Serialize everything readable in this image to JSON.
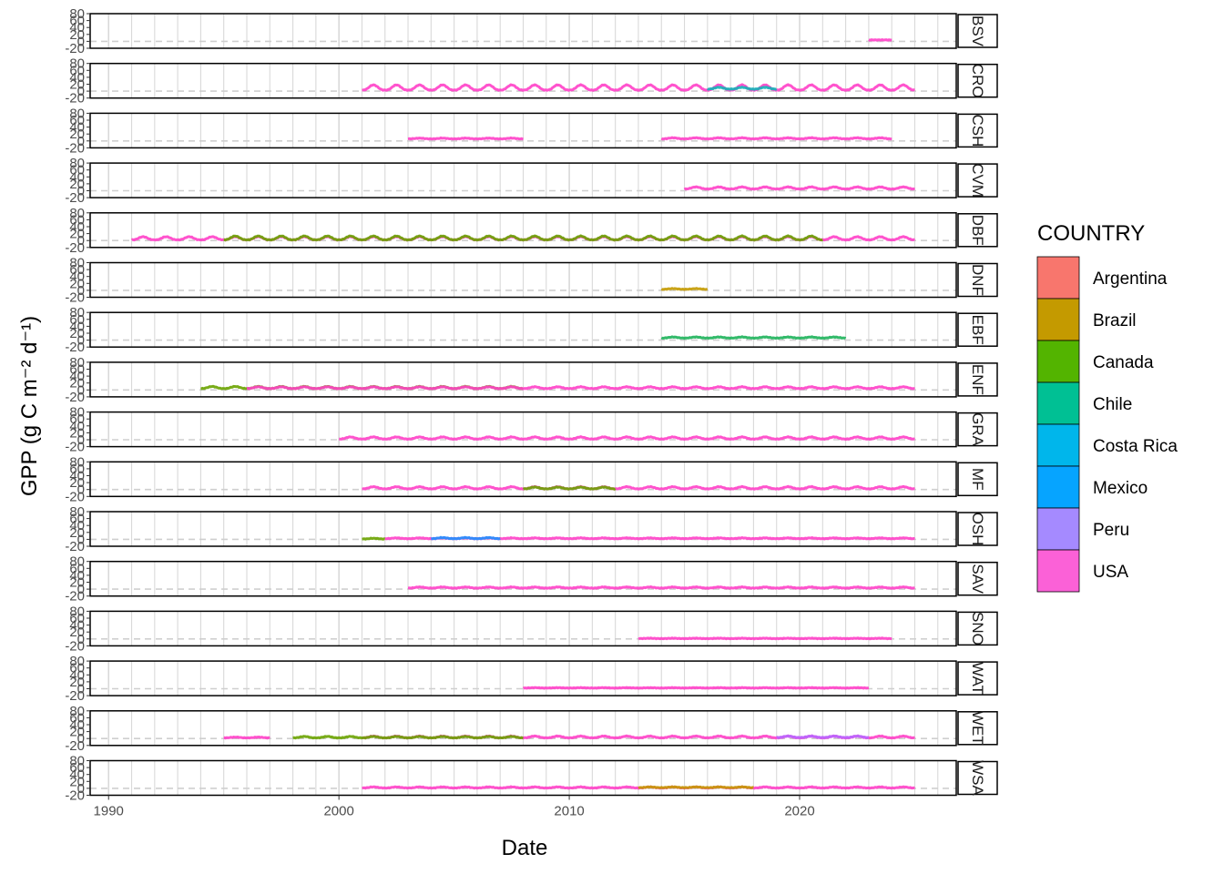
{
  "chart_data": {
    "type": "line",
    "xlabel": "Date",
    "ylabel": "GPP (g C m⁻² d⁻¹)",
    "xlim": [
      1989.2,
      2026.8
    ],
    "x_ticks": [
      1990,
      2000,
      2010,
      2020
    ],
    "x_tick_labels": [
      "1990",
      "2000",
      "2010",
      "2020"
    ],
    "ylim": [
      -20,
      80
    ],
    "y_ticks": [
      -20,
      0,
      20,
      40,
      60,
      80
    ],
    "y_tick_labels": [
      "-20",
      "0",
      "20",
      "40",
      "60",
      "80"
    ],
    "zero_line": true,
    "grid": "major and minor vertical",
    "legend": {
      "title": "COUNTRY",
      "position": "right",
      "entries": [
        {
          "name": "Argentina",
          "color": "#F8766D"
        },
        {
          "name": "Brazil",
          "color": "#C49A00"
        },
        {
          "name": "Canada",
          "color": "#53B400"
        },
        {
          "name": "Chile",
          "color": "#00C094"
        },
        {
          "name": "Costa Rica",
          "color": "#00B6EB"
        },
        {
          "name": "Mexico",
          "color": "#06A4FF"
        },
        {
          "name": "Peru",
          "color": "#A58AFF"
        },
        {
          "name": "USA",
          "color": "#FB61D7"
        }
      ]
    },
    "colors": {
      "Argentina": "#F8766D",
      "Brazil": "#C49A00",
      "Canada": "#6AA300",
      "Chile": "#1DB35A",
      "Costa Rica": "#14B3B8",
      "Mexico": "#1E90FF",
      "Peru": "#B966FF",
      "USA": "#FF40C8"
    },
    "panels": [
      {
        "label": "BSV",
        "series": [
          {
            "country": "USA",
            "segments": [
              {
                "x": [
                  2023.0,
                  2024.0
                ],
                "base": 4,
                "amp": 0
              }
            ]
          }
        ]
      },
      {
        "label": "CRO",
        "series": [
          {
            "country": "USA",
            "segments": [
              {
                "x": [
                  2001.0,
                  2025.0
                ],
                "base": 3,
                "amp": 15
              }
            ]
          },
          {
            "country": "Costa Rica",
            "segments": [
              {
                "x": [
                  2016.0,
                  2019.0
                ],
                "base": 6,
                "amp": 5
              }
            ]
          }
        ]
      },
      {
        "label": "CSH",
        "series": [
          {
            "country": "USA",
            "segments": [
              {
                "x": [
                  2003.0,
                  2008.0
                ],
                "base": 6,
                "amp": 2
              },
              {
                "x": [
                  2014.0,
                  2024.0
                ],
                "base": 6,
                "amp": 3
              }
            ]
          }
        ]
      },
      {
        "label": "CVM",
        "series": [
          {
            "country": "USA",
            "segments": [
              {
                "x": [
                  2015.0,
                  2025.0
                ],
                "base": 5,
                "amp": 6
              }
            ]
          }
        ]
      },
      {
        "label": "DBF",
        "series": [
          {
            "country": "USA",
            "segments": [
              {
                "x": [
                  1991.0,
                  2025.0
                ],
                "base": 2,
                "amp": 9
              }
            ]
          },
          {
            "country": "Canada",
            "segments": [
              {
                "x": [
                  1995.0,
                  2021.0
                ],
                "base": 2,
                "amp": 11
              }
            ]
          }
        ]
      },
      {
        "label": "DNF",
        "series": [
          {
            "country": "Brazil",
            "segments": [
              {
                "x": [
                  2014.0,
                  2016.0
                ],
                "base": 3,
                "amp": 2
              }
            ]
          }
        ]
      },
      {
        "label": "EBF",
        "series": [
          {
            "country": "Chile",
            "segments": [
              {
                "x": [
                  2014.0,
                  2022.0
                ],
                "base": 6,
                "amp": 3
              }
            ]
          }
        ]
      },
      {
        "label": "ENF",
        "series": [
          {
            "country": "Canada",
            "segments": [
              {
                "x": [
                  1994.0,
                  2008.0
                ],
                "base": 4,
                "amp": 6
              }
            ]
          },
          {
            "country": "USA",
            "segments": [
              {
                "x": [
                  1996.0,
                  2025.0
                ],
                "base": 4,
                "amp": 5
              }
            ]
          }
        ]
      },
      {
        "label": "GRA",
        "series": [
          {
            "country": "USA",
            "segments": [
              {
                "x": [
                  2000.0,
                  2025.0
                ],
                "base": 2,
                "amp": 6
              }
            ]
          }
        ]
      },
      {
        "label": "MF",
        "series": [
          {
            "country": "USA",
            "segments": [
              {
                "x": [
                  2001.0,
                  2025.0
                ],
                "base": 2,
                "amp": 6
              }
            ]
          },
          {
            "country": "Canada",
            "segments": [
              {
                "x": [
                  2008.0,
                  2012.0
                ],
                "base": 2,
                "amp": 5
              }
            ]
          }
        ]
      },
      {
        "label": "OSH",
        "series": [
          {
            "country": "Canada",
            "segments": [
              {
                "x": [
                  2001.0,
                  2002.0
                ],
                "base": 1,
                "amp": 2
              }
            ]
          },
          {
            "country": "USA",
            "segments": [
              {
                "x": [
                  2002.0,
                  2025.0
                ],
                "base": 2,
                "amp": 2
              }
            ]
          },
          {
            "country": "Mexico",
            "segments": [
              {
                "x": [
                  2004.0,
                  2007.0
                ],
                "base": 2,
                "amp": 3
              }
            ]
          }
        ]
      },
      {
        "label": "SAV",
        "series": [
          {
            "country": "USA",
            "segments": [
              {
                "x": [
                  2003.0,
                  2025.0
                ],
                "base": 3,
                "amp": 3
              }
            ]
          }
        ]
      },
      {
        "label": "SNO",
        "series": [
          {
            "country": "USA",
            "segments": [
              {
                "x": [
                  2013.0,
                  2024.0
                ],
                "base": 1,
                "amp": 1
              }
            ]
          }
        ]
      },
      {
        "label": "WAT",
        "series": [
          {
            "country": "USA",
            "segments": [
              {
                "x": [
                  2008.0,
                  2023.0
                ],
                "base": 2,
                "amp": 1
              }
            ]
          }
        ]
      },
      {
        "label": "WET",
        "series": [
          {
            "country": "USA",
            "segments": [
              {
                "x": [
                  1995.0,
                  1997.0
                ],
                "base": 2,
                "amp": 2
              },
              {
                "x": [
                  2001.0,
                  2025.0
                ],
                "base": 2,
                "amp": 5
              }
            ]
          },
          {
            "country": "Canada",
            "segments": [
              {
                "x": [
                  1998.0,
                  2008.0
                ],
                "base": 2,
                "amp": 4
              }
            ]
          },
          {
            "country": "Peru",
            "segments": [
              {
                "x": [
                  2019.0,
                  2023.0
                ],
                "base": 3,
                "amp": 4
              }
            ]
          }
        ]
      },
      {
        "label": "WSA",
        "series": [
          {
            "country": "USA",
            "segments": [
              {
                "x": [
                  2001.0,
                  2025.0
                ],
                "base": 1,
                "amp": 3
              }
            ]
          },
          {
            "country": "Brazil",
            "segments": [
              {
                "x": [
                  2013.0,
                  2018.0
                ],
                "base": 2,
                "amp": 2
              }
            ]
          }
        ]
      }
    ]
  }
}
